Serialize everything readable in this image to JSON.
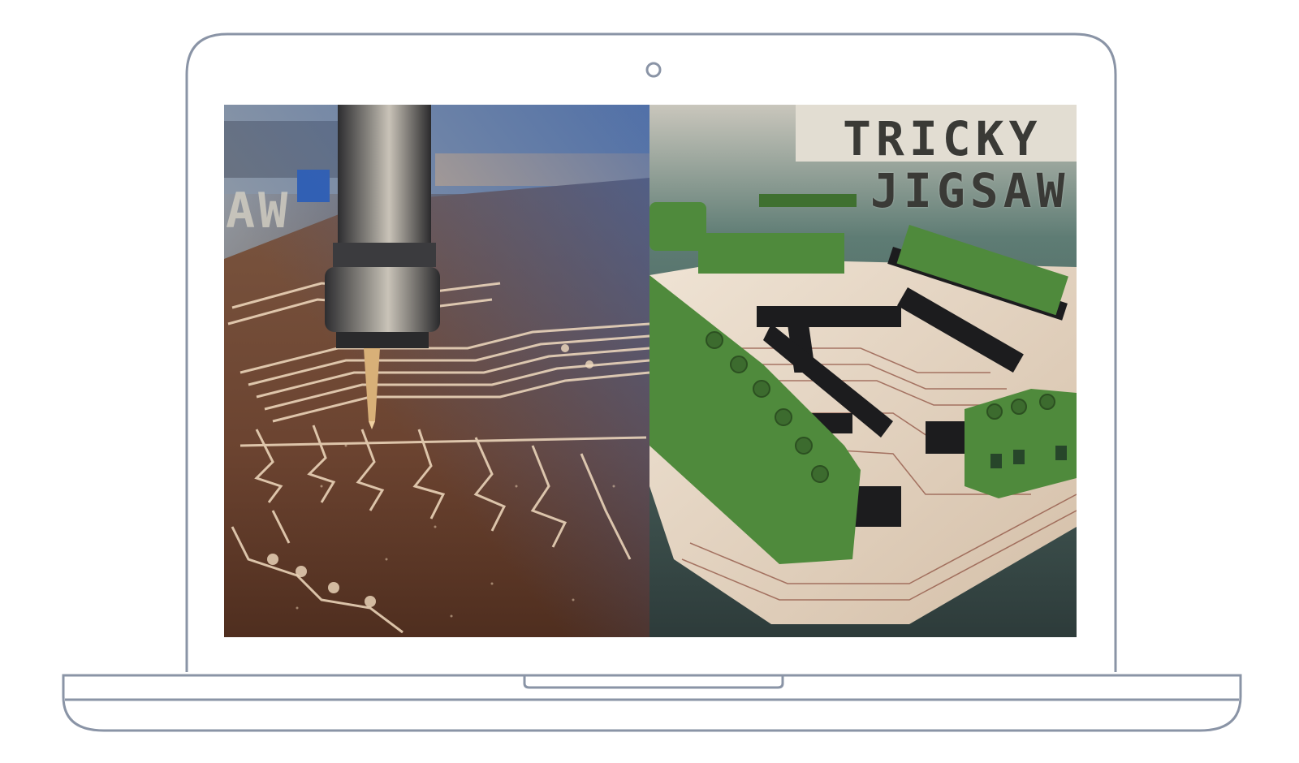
{
  "device": {
    "type": "laptop",
    "frame_color": "#8a94a6",
    "camera_icon": "camera-icon"
  },
  "screen": {
    "left_photo": {
      "subject": "cnc-milling-pcb",
      "partial_sign_text": "AW"
    },
    "right_photo": {
      "subject": "assembled-pcb-with-terminal-blocks",
      "sign_line_1": "TRICKY",
      "sign_line_2": "JIGSAW"
    }
  },
  "colors": {
    "copper": "#8a5a3c",
    "trace": "#f2dcc0",
    "terminal_green": "#4f8a3c",
    "header_black": "#1c1c1e",
    "board": "#e7d7c6"
  }
}
